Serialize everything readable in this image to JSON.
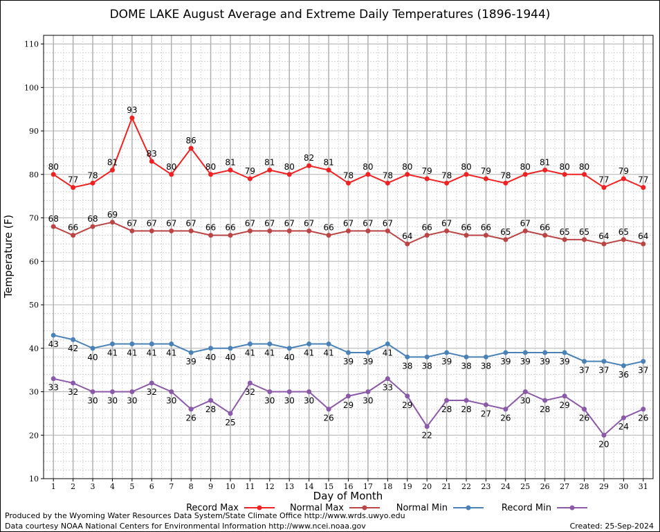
{
  "chart_data": {
    "type": "line",
    "title": "DOME LAKE August Average and Extreme Daily Temperatures (1896-1944)",
    "xlabel": "Day of Month",
    "ylabel": "Temperature (F)",
    "ylim": [
      10,
      112
    ],
    "yticks": [
      10,
      20,
      30,
      40,
      50,
      60,
      70,
      80,
      90,
      100,
      110
    ],
    "grid": true,
    "legend_position": "bottom",
    "x": [
      1,
      2,
      3,
      4,
      5,
      6,
      7,
      8,
      9,
      10,
      11,
      12,
      13,
      14,
      15,
      16,
      17,
      18,
      19,
      20,
      21,
      22,
      23,
      24,
      25,
      26,
      27,
      28,
      29,
      30,
      31
    ],
    "series": [
      {
        "name": "Record Max",
        "color": "#ee2222",
        "label_pos": "above",
        "values": [
          80,
          77,
          78,
          81,
          93,
          83,
          80,
          86,
          80,
          81,
          79,
          81,
          80,
          82,
          81,
          78,
          80,
          78,
          80,
          79,
          78,
          80,
          79,
          78,
          80,
          81,
          80,
          80,
          77,
          79,
          77
        ]
      },
      {
        "name": "Normal Max",
        "color": "#bb4444",
        "label_pos": "above",
        "values": [
          68,
          66,
          68,
          69,
          67,
          67,
          67,
          67,
          66,
          66,
          67,
          67,
          67,
          67,
          66,
          67,
          67,
          67,
          64,
          66,
          67,
          66,
          66,
          65,
          67,
          66,
          65,
          65,
          64,
          65,
          64
        ]
      },
      {
        "name": "Normal Min",
        "color": "#4a82b8",
        "label_pos": "below",
        "values": [
          43,
          42,
          40,
          41,
          41,
          41,
          41,
          39,
          40,
          40,
          41,
          41,
          40,
          41,
          41,
          39,
          39,
          41,
          38,
          38,
          39,
          38,
          38,
          39,
          39,
          39,
          39,
          37,
          37,
          36,
          37
        ]
      },
      {
        "name": "Record Min",
        "color": "#8a5aa8",
        "label_pos": "below",
        "values": [
          33,
          32,
          30,
          30,
          30,
          32,
          30,
          26,
          28,
          25,
          32,
          30,
          30,
          30,
          26,
          29,
          30,
          33,
          29,
          22,
          28,
          28,
          27,
          26,
          30,
          28,
          29,
          26,
          20,
          24,
          26
        ]
      }
    ]
  },
  "footer": {
    "line1": "Produced by the Wyoming Water Resources Data System/State Climate Office http://www.wrds.uwyo.edu",
    "line2": "Data courtesy NOAA National Centers for Environmental Information http://www.ncei.noaa.gov",
    "created": "Created:  25-Sep-2024"
  }
}
